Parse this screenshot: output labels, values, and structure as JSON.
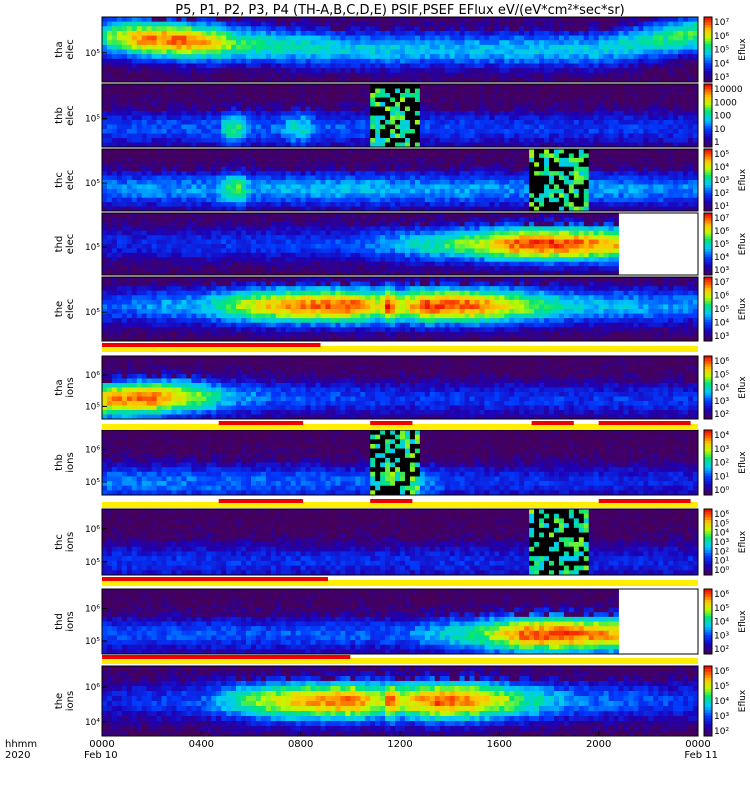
{
  "chart_data": {
    "type": "heatmap",
    "title": "P5, P1, P2, P3, P4 (TH-A,B,C,D,E) PSIF,PSEF EFlux eV/(eV*cm²*sec*sr)",
    "x_axis": {
      "row_label": "hhmm",
      "year_label": "2020",
      "ticks": [
        "0000",
        "0400",
        "0800",
        "1200",
        "1600",
        "2000",
        "0000"
      ],
      "dates": [
        "Feb 10",
        "Feb 11"
      ],
      "range_hours": [
        0,
        24
      ]
    },
    "colormap": "rainbow",
    "panels": [
      {
        "key": "tha_elec",
        "probe": "tha",
        "species": "elec",
        "label": [
          "tha",
          "elec"
        ],
        "yticks": [
          "10⁵"
        ],
        "cb_ticks": [
          "10⁷",
          "10⁶",
          "10⁵",
          "10⁴",
          "10³"
        ],
        "cb_unit": "Eflux",
        "data_end": 24,
        "gaps": [],
        "profile": [
          [
            0,
            0.45
          ],
          [
            0.3,
            0.62
          ],
          [
            1.5,
            0.85
          ],
          [
            3.3,
            0.9
          ],
          [
            4.5,
            0.78
          ],
          [
            5.5,
            0.58
          ],
          [
            7.5,
            0.5
          ],
          [
            10,
            0.45
          ],
          [
            14,
            0.42
          ],
          [
            20,
            0.44
          ],
          [
            22.8,
            0.55
          ],
          [
            24,
            0.6
          ]
        ],
        "band": [
          [
            0,
            0.7
          ],
          [
            10,
            0.5
          ],
          [
            20,
            0.5
          ],
          [
            24,
            0.75
          ]
        ]
      },
      {
        "key": "thb_elec",
        "probe": "thb",
        "species": "elec",
        "label": [
          "thb",
          "elec"
        ],
        "yticks": [
          "10⁵"
        ],
        "cb_ticks": [
          "10000",
          "1000",
          "100",
          "10",
          "1"
        ],
        "cb_unit": "",
        "data_end": 24,
        "gaps": [
          [
            10.75,
            12.7
          ]
        ],
        "profile": [
          [
            0,
            0.28
          ],
          [
            4.7,
            0.3
          ],
          [
            5,
            0.55
          ],
          [
            5.6,
            0.55
          ],
          [
            6,
            0.3
          ],
          [
            7.2,
            0.32
          ],
          [
            7.6,
            0.48
          ],
          [
            8.2,
            0.48
          ],
          [
            8.6,
            0.3
          ],
          [
            13,
            0.28
          ],
          [
            16,
            0.26
          ],
          [
            24,
            0.25
          ]
        ],
        "band": [
          [
            0,
            0.3
          ],
          [
            24,
            0.3
          ]
        ]
      },
      {
        "key": "thc_elec",
        "probe": "thc",
        "species": "elec",
        "label": [
          "thc",
          "elec"
        ],
        "yticks": [
          "10⁵"
        ],
        "cb_ticks": [
          "10⁵",
          "10⁴",
          "10³",
          "10²",
          "10¹"
        ],
        "cb_unit": "Eflux",
        "data_end": 24,
        "gaps": [
          [
            17.2,
            19.55
          ]
        ],
        "profile": [
          [
            0,
            0.35
          ],
          [
            4.5,
            0.38
          ],
          [
            5.2,
            0.6
          ],
          [
            5.6,
            0.6
          ],
          [
            6,
            0.38
          ],
          [
            9,
            0.42
          ],
          [
            12,
            0.4
          ],
          [
            17,
            0.36
          ],
          [
            20,
            0.38
          ],
          [
            24,
            0.35
          ]
        ],
        "band": [
          [
            0,
            0.35
          ],
          [
            24,
            0.35
          ]
        ]
      },
      {
        "key": "thd_elec",
        "probe": "thd",
        "species": "elec",
        "label": [
          "thd",
          "elec"
        ],
        "yticks": [
          "10⁵"
        ],
        "cb_ticks": [
          "10⁷",
          "10⁶",
          "10⁵",
          "10⁴",
          "10³"
        ],
        "cb_unit": "Eflux",
        "data_end": 20.8,
        "gaps": [],
        "profile": [
          [
            0,
            0.22
          ],
          [
            10,
            0.28
          ],
          [
            12.5,
            0.45
          ],
          [
            14,
            0.58
          ],
          [
            15.5,
            0.72
          ],
          [
            16.6,
            0.9
          ],
          [
            18,
            0.95
          ],
          [
            19.5,
            0.88
          ],
          [
            20.8,
            0.8
          ]
        ],
        "band": [
          [
            0,
            0.5
          ],
          [
            24,
            0.5
          ]
        ]
      },
      {
        "key": "the_elec",
        "probe": "the",
        "species": "elec",
        "label": [
          "the",
          "elec"
        ],
        "yticks": [
          "10⁵"
        ],
        "cb_ticks": [
          "10⁷",
          "10⁶",
          "10⁵",
          "10⁴",
          "10³"
        ],
        "cb_unit": "Eflux",
        "data_end": 24,
        "gaps": [],
        "profile": [
          [
            0,
            0.3
          ],
          [
            4,
            0.42
          ],
          [
            6,
            0.72
          ],
          [
            8,
            0.88
          ],
          [
            10,
            0.93
          ],
          [
            11.2,
            0.7
          ],
          [
            11.5,
            0.98
          ],
          [
            12,
            0.7
          ],
          [
            13,
            0.93
          ],
          [
            15,
            0.9
          ],
          [
            17,
            0.65
          ],
          [
            19,
            0.45
          ],
          [
            24,
            0.35
          ]
        ],
        "band": [
          [
            0,
            0.55
          ],
          [
            24,
            0.55
          ]
        ]
      },
      {
        "key": "tha_ions",
        "probe": "tha",
        "species": "ions",
        "label": [
          "tha",
          "ions"
        ],
        "yticks": [
          "10⁶",
          "10⁵"
        ],
        "cb_ticks": [
          "10⁶",
          "10⁵",
          "10⁴",
          "10³",
          "10²"
        ],
        "cb_unit": "Eflux",
        "data_end": 24,
        "gaps": [],
        "profile": [
          [
            0,
            0.8
          ],
          [
            1,
            0.88
          ],
          [
            2,
            0.9
          ],
          [
            3.5,
            0.7
          ],
          [
            5,
            0.42
          ],
          [
            7,
            0.3
          ],
          [
            12,
            0.25
          ],
          [
            24,
            0.25
          ]
        ],
        "band": [
          [
            0,
            0.3
          ],
          [
            3,
            0.35
          ],
          [
            24,
            0.3
          ]
        ]
      },
      {
        "key": "thb_ions",
        "probe": "thb",
        "species": "ions",
        "label": [
          "thb",
          "ions"
        ],
        "yticks": [
          "10⁶",
          "10⁵"
        ],
        "cb_ticks": [
          "10⁴",
          "10³",
          "10²",
          "10¹",
          "10⁰"
        ],
        "cb_unit": "Eflux",
        "data_end": 24,
        "gaps": [
          [
            10.75,
            12.7
          ]
        ],
        "profile": [
          [
            0,
            0.35
          ],
          [
            10,
            0.3
          ],
          [
            13,
            0.38
          ],
          [
            14,
            0.25
          ],
          [
            24,
            0.22
          ]
        ],
        "band": [
          [
            0,
            0.2
          ],
          [
            24,
            0.2
          ]
        ]
      },
      {
        "key": "thc_ions",
        "probe": "thc",
        "species": "ions",
        "label": [
          "thc",
          "ions"
        ],
        "yticks": [
          "10⁶",
          "10⁵"
        ],
        "cb_ticks": [
          "10⁶",
          "10⁵",
          "10⁴",
          "10³",
          "10²",
          "10¹",
          "10⁰"
        ],
        "cb_unit": "Eflux",
        "data_end": 24,
        "gaps": [
          [
            17.2,
            19.55
          ]
        ],
        "profile": [
          [
            0,
            0.25
          ],
          [
            24,
            0.22
          ]
        ],
        "band": [
          [
            0,
            0.2
          ],
          [
            24,
            0.2
          ]
        ]
      },
      {
        "key": "thd_ions",
        "probe": "thd",
        "species": "ions",
        "label": [
          "thd",
          "ions"
        ],
        "yticks": [
          "10⁶",
          "10⁵"
        ],
        "cb_ticks": [
          "10⁶",
          "10⁵",
          "10⁴",
          "10³",
          "10²"
        ],
        "cb_unit": "Eflux",
        "data_end": 20.8,
        "gaps": [],
        "profile": [
          [
            0,
            0.28
          ],
          [
            12,
            0.3
          ],
          [
            15,
            0.55
          ],
          [
            17,
            0.9
          ],
          [
            18.5,
            0.95
          ],
          [
            20,
            0.85
          ],
          [
            20.8,
            0.8
          ]
        ],
        "band": [
          [
            0,
            0.3
          ],
          [
            24,
            0.3
          ]
        ]
      },
      {
        "key": "the_ions",
        "probe": "the",
        "species": "ions",
        "label": [
          "the",
          "ions"
        ],
        "yticks": [
          "10⁶",
          "10⁴"
        ],
        "cb_ticks": [
          "10⁶",
          "10⁵",
          "10⁴",
          "10³",
          "10²"
        ],
        "cb_unit": "Eflux",
        "data_end": 24,
        "gaps": [],
        "profile": [
          [
            0,
            0.2
          ],
          [
            4,
            0.3
          ],
          [
            6,
            0.6
          ],
          [
            8,
            0.82
          ],
          [
            10,
            0.9
          ],
          [
            11.3,
            0.7
          ],
          [
            11.6,
            0.95
          ],
          [
            12,
            0.7
          ],
          [
            13.5,
            0.92
          ],
          [
            15,
            0.85
          ],
          [
            17,
            0.55
          ],
          [
            19,
            0.35
          ],
          [
            24,
            0.25
          ]
        ],
        "band": [
          [
            0,
            0.5
          ],
          [
            24,
            0.5
          ]
        ]
      }
    ],
    "mode_bars": [
      {
        "after": "the_elec",
        "red": [
          [
            0,
            8.8
          ]
        ],
        "yellow_full": true
      },
      {
        "after": "tha_ions",
        "red": [
          [
            4.7,
            8.1
          ],
          [
            10.8,
            12.5
          ],
          [
            17.3,
            19
          ],
          [
            20,
            23.7
          ]
        ],
        "yellow_full": true
      },
      {
        "after": "thb_ions",
        "red": [
          [
            4.7,
            8.1
          ],
          [
            10.8,
            12.5
          ],
          [
            20,
            23.7
          ]
        ],
        "yellow_full": true
      },
      {
        "after": "thc_ions",
        "red": [
          [
            0,
            9.1
          ]
        ],
        "yellow_full": true
      },
      {
        "after": "thd_ions",
        "red": [
          [
            0,
            10
          ]
        ],
        "yellow_full": true
      }
    ]
  }
}
